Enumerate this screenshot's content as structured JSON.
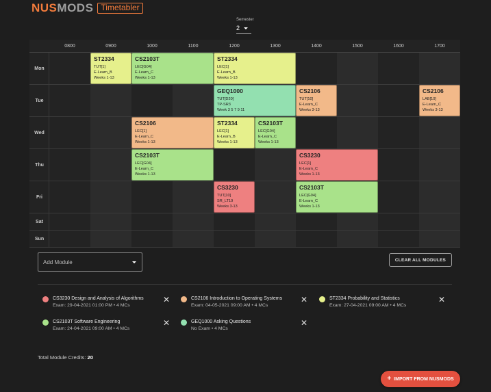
{
  "header": {
    "logo_nus": "NUS",
    "logo_mods": "MODS",
    "logo_tag": "Timetabler"
  },
  "semester": {
    "label": "Semester",
    "value": "2"
  },
  "timetable": {
    "hours": [
      "0800",
      "0900",
      "1000",
      "1100",
      "1200",
      "1300",
      "1400",
      "1500",
      "1600",
      "1700"
    ],
    "days": [
      "Mon",
      "Tue",
      "Wed",
      "Thu",
      "Fri",
      "Sat",
      "Sun"
    ],
    "lessons": [
      {
        "day": 0,
        "start": 9,
        "end": 10,
        "code": "ST2334",
        "type": "TUT[1]",
        "venue": "E-Learn_B",
        "weeks": "Weeks 1-13",
        "color": "#e6f08c"
      },
      {
        "day": 0,
        "start": 10,
        "end": 12,
        "code": "CS2103T",
        "type": "LEC[G04]",
        "venue": "E-Learn_C",
        "weeks": "Weeks 1-13",
        "color": "#a9e28a"
      },
      {
        "day": 0,
        "start": 12,
        "end": 14,
        "code": "ST2334",
        "type": "LEC[1]",
        "venue": "E-Learn_B",
        "weeks": "Weeks 1-13",
        "color": "#e6f08c"
      },
      {
        "day": 1,
        "start": 12,
        "end": 14,
        "code": "GEQ1000",
        "type": "TUT[D20]",
        "venue": "TP-SR3",
        "weeks": "Week 3 5 7 9 11",
        "color": "#93e0b0"
      },
      {
        "day": 1,
        "start": 14,
        "end": 15,
        "code": "CS2106",
        "type": "TUT[10]",
        "venue": "E-Learn_C",
        "weeks": "Weeks 3-13",
        "color": "#f2b989"
      },
      {
        "day": 1,
        "start": 17,
        "end": 18,
        "code": "CS2106",
        "type": "LAB[10]",
        "venue": "E-Learn_C",
        "weeks": "Weeks 3-13",
        "color": "#f2b989"
      },
      {
        "day": 2,
        "start": 10,
        "end": 12,
        "code": "CS2106",
        "type": "LEC[1]",
        "venue": "E-Learn_C",
        "weeks": "Weeks 1-13",
        "color": "#f2b989"
      },
      {
        "day": 2,
        "start": 12,
        "end": 13,
        "code": "ST2334",
        "type": "LEC[1]",
        "venue": "E-Learn_B",
        "weeks": "Weeks 1-13",
        "color": "#e6f08c"
      },
      {
        "day": 2,
        "start": 13,
        "end": 14,
        "code": "CS2103T",
        "type": "LEC[G04]",
        "venue": "E-Learn_C",
        "weeks": "Weeks 1-13",
        "color": "#a9e28a"
      },
      {
        "day": 3,
        "start": 10,
        "end": 12,
        "code": "CS2103T",
        "type": "LEC[G04]",
        "venue": "E-Learn_C",
        "weeks": "Weeks 1-13",
        "color": "#a9e28a"
      },
      {
        "day": 3,
        "start": 14,
        "end": 16,
        "code": "CS3230",
        "type": "LEC[1]",
        "venue": "E-Learn_C",
        "weeks": "Weeks 1-13",
        "color": "#ee8080"
      },
      {
        "day": 4,
        "start": 12,
        "end": 13,
        "code": "CS3230",
        "type": "TUT[10]",
        "venue": "SR_LT19",
        "weeks": "Weeks 3-13",
        "color": "#ee8080"
      },
      {
        "day": 4,
        "start": 14,
        "end": 16,
        "code": "CS2103T",
        "type": "LEC[G04]",
        "venue": "E-Learn_C",
        "weeks": "Weeks 1-13",
        "color": "#a9e28a"
      }
    ]
  },
  "controls": {
    "add_module_placeholder": "Add Module",
    "clear_all": "CLEAR ALL MODULES"
  },
  "modules": [
    {
      "title": "CS3230 Design and Analysis of Algorithms",
      "sub": "Exam: 29-04-2021 01:00 PM • 4 MCs",
      "color": "#ee8080"
    },
    {
      "title": "CS2106 Introduction to Operating Systems",
      "sub": "Exam: 04-05-2021 09:00 AM • 4 MCs",
      "color": "#f2b989"
    },
    {
      "title": "ST2334 Probability and Statistics",
      "sub": "Exam: 27-04-2021 09:00 AM • 4 MCs",
      "color": "#e6f08c"
    },
    {
      "title": "CS2103T Software Engineering",
      "sub": "Exam: 24-04-2021 09:00 AM • 4 MCs",
      "color": "#a9e28a"
    },
    {
      "title": "GEQ1000 Asking Questions",
      "sub": "No Exam • 4 MCs",
      "color": "#93e0b0"
    }
  ],
  "credits": {
    "label": "Total Module Credits: ",
    "value": "20"
  },
  "import_button": {
    "icon": "plus-icon",
    "label": "IMPORT FROM NUSMODS"
  }
}
